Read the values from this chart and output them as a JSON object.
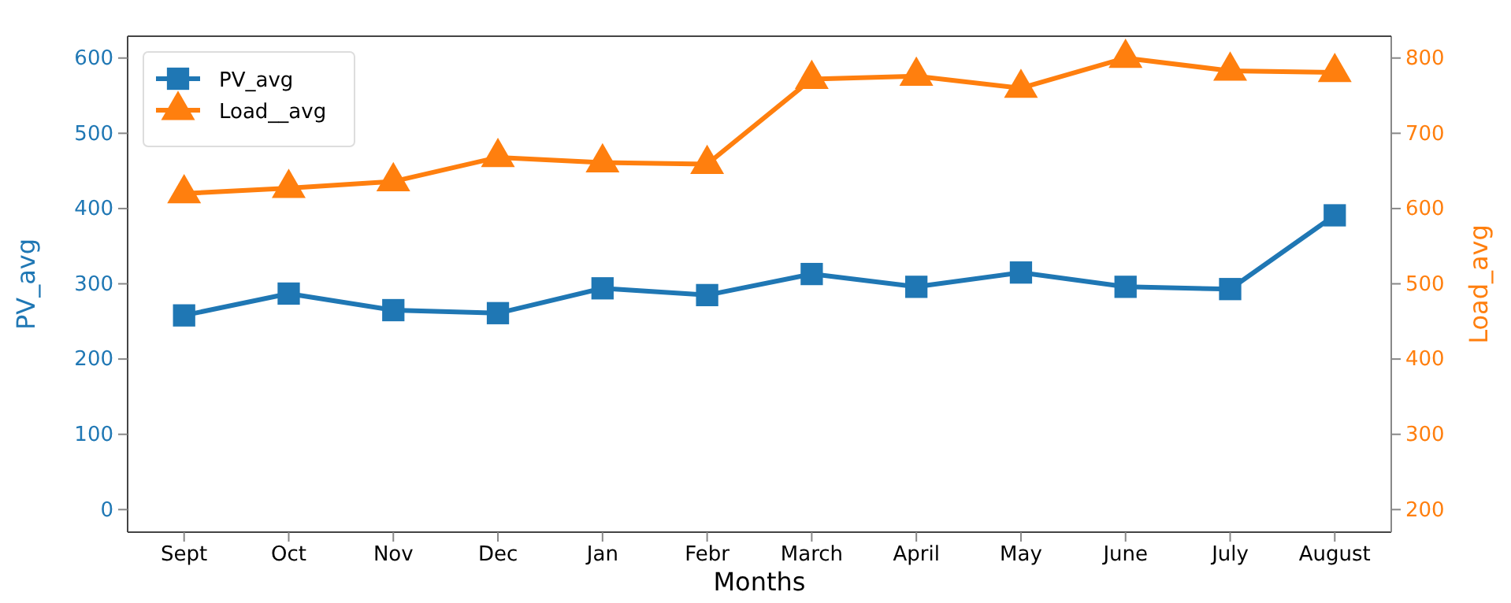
{
  "chart_data": {
    "type": "line",
    "xlabel": "Months",
    "ylabel": "PV_avg",
    "y2label": "Load_avg",
    "categories": [
      "Sept",
      "Oct",
      "Nov",
      "Dec",
      "Jan",
      "Febr",
      "March",
      "April",
      "May",
      "June",
      "July",
      "August"
    ],
    "series": [
      {
        "name": "PV_avg",
        "color": "#1f77b4",
        "marker": "square",
        "values": [
          258,
          287,
          265,
          261,
          294,
          285,
          313,
          296,
          315,
          296,
          293,
          391
        ]
      },
      {
        "name": "Load__avg",
        "color": "#ff7f0e",
        "marker": "triangle",
        "axis": "y2",
        "values": [
          620,
          627,
          636,
          668,
          661,
          659,
          772,
          776,
          760,
          800,
          783,
          781
        ]
      }
    ],
    "ylim": [
      -30,
      629
    ],
    "yticks": [
      0,
      100,
      200,
      300,
      400,
      500,
      600
    ],
    "y2lim": [
      170,
      829
    ],
    "y2ticks": [
      200,
      300,
      400,
      500,
      600,
      700,
      800
    ],
    "legend": "top left",
    "grid": false,
    "line_style": "solid"
  }
}
